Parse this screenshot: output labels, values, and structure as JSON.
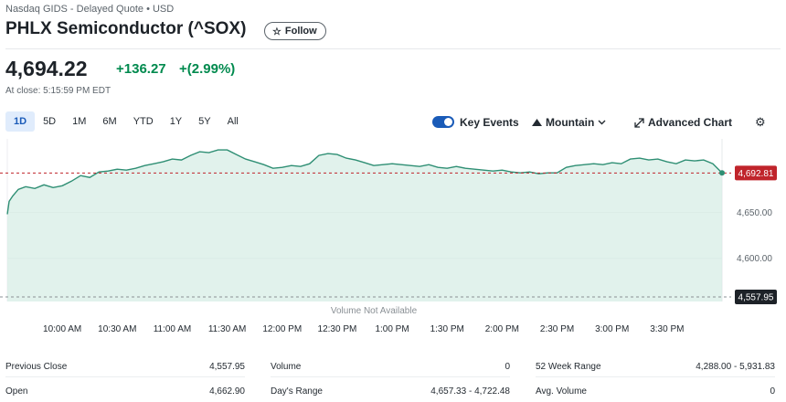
{
  "header": {
    "source": "Nasdaq GIDS - Delayed Quote • USD",
    "title": "PHLX Semiconductor (^SOX)",
    "follow_label": "Follow",
    "follow_icon": "star-outline-icon"
  },
  "quote": {
    "price": "4,694.22",
    "change": "+136.27",
    "change_pct": "+(2.99%)",
    "at_close": "At close: 5:15:59 PM EDT",
    "positive_color": "#008a4e"
  },
  "toolbar": {
    "ranges": [
      "1D",
      "5D",
      "1M",
      "6M",
      "YTD",
      "1Y",
      "5Y",
      "All"
    ],
    "active_range": "1D",
    "key_events_label": "Key Events",
    "key_events_on": true,
    "chart_type_label": "Mountain",
    "advanced_chart_label": "Advanced Chart",
    "settings_icon": "gear-icon"
  },
  "chart_data": {
    "type": "area",
    "xlabel": "",
    "ylabel": "",
    "x_ticks": [
      "10:00 AM",
      "10:30 AM",
      "11:00 AM",
      "11:30 AM",
      "12:00 PM",
      "12:30 PM",
      "1:00 PM",
      "1:30 PM",
      "2:00 PM",
      "2:30 PM",
      "3:00 PM",
      "3:30 PM"
    ],
    "x_start": "9:30 AM",
    "x_end": "4:00 PM",
    "y_ticks": [
      "4,650.00",
      "4,600.00"
    ],
    "ylim": [
      4553,
      4730
    ],
    "current_label": "4,692.81",
    "current_value": 4692.81,
    "previous_close_label": "4,557.95",
    "previous_close_value": 4557.95,
    "volume_note": "Volume Not Available",
    "line_color": "#2f8f74",
    "fill_color": "#d7eee6",
    "current_badge_color": "#c0242b",
    "previous_close_badge_color": "#1d2228",
    "series": [
      {
        "x": [
          "9:30 AM",
          "9:31 AM",
          "9:33 AM",
          "9:36 AM",
          "9:40 AM",
          "9:45 AM",
          "9:50 AM",
          "9:55 AM",
          "10:00 AM",
          "10:05 AM",
          "10:10 AM",
          "10:15 AM",
          "10:20 AM",
          "10:25 AM",
          "10:30 AM",
          "10:35 AM",
          "10:40 AM",
          "10:45 AM",
          "10:50 AM",
          "10:55 AM",
          "11:00 AM",
          "11:05 AM",
          "11:10 AM",
          "11:15 AM",
          "11:20 AM",
          "11:25 AM",
          "11:30 AM",
          "11:35 AM",
          "11:40 AM",
          "11:45 AM",
          "11:50 AM",
          "11:55 AM",
          "12:00 PM",
          "12:05 PM",
          "12:10 PM",
          "12:15 PM",
          "12:20 PM",
          "12:25 PM",
          "12:30 PM",
          "12:35 PM",
          "12:40 PM",
          "12:45 PM",
          "12:50 PM",
          "12:55 PM",
          "1:00 PM",
          "1:05 PM",
          "1:10 PM",
          "1:15 PM",
          "1:20 PM",
          "1:25 PM",
          "1:30 PM",
          "1:35 PM",
          "1:40 PM",
          "1:45 PM",
          "1:50 PM",
          "1:55 PM",
          "2:00 PM",
          "2:05 PM",
          "2:10 PM",
          "2:15 PM",
          "2:20 PM",
          "2:25 PM",
          "2:30 PM",
          "2:35 PM",
          "2:40 PM",
          "2:45 PM",
          "2:50 PM",
          "2:55 PM",
          "3:00 PM",
          "3:05 PM",
          "3:10 PM",
          "3:15 PM",
          "3:20 PM",
          "3:25 PM",
          "3:30 PM",
          "3:35 PM",
          "3:40 PM",
          "3:45 PM",
          "3:50 PM",
          "3:55 PM",
          "4:00 PM"
        ],
        "values": [
          4648,
          4662,
          4668,
          4675,
          4678,
          4676,
          4680,
          4677,
          4679,
          4684,
          4690,
          4688,
          4694,
          4695,
          4697,
          4696,
          4698,
          4701,
          4703,
          4705,
          4708,
          4707,
          4712,
          4716,
          4715,
          4718,
          4718,
          4713,
          4708,
          4705,
          4702,
          4698,
          4699,
          4701,
          4700,
          4703,
          4712,
          4714,
          4713,
          4709,
          4707,
          4704,
          4701,
          4702,
          4703,
          4702,
          4701,
          4700,
          4702,
          4699,
          4698,
          4700,
          4698,
          4697,
          4696,
          4695,
          4696,
          4694,
          4693,
          4694,
          4692,
          4693,
          4693,
          4699,
          4701,
          4702,
          4703,
          4702,
          4704,
          4703,
          4708,
          4709,
          4707,
          4708,
          4705,
          4703,
          4707,
          4706,
          4707,
          4703,
          4693
        ]
      }
    ]
  },
  "stats": {
    "col1": [
      {
        "label": "Previous Close",
        "value": "4,557.95"
      },
      {
        "label": "Open",
        "value": "4,662.90"
      }
    ],
    "col2": [
      {
        "label": "Volume",
        "value": "0"
      },
      {
        "label": "Day's Range",
        "value": "4,657.33 - 4,722.48"
      }
    ],
    "col3": [
      {
        "label": "52 Week Range",
        "value": "4,288.00 - 5,931.83"
      },
      {
        "label": "Avg. Volume",
        "value": "0"
      }
    ]
  }
}
